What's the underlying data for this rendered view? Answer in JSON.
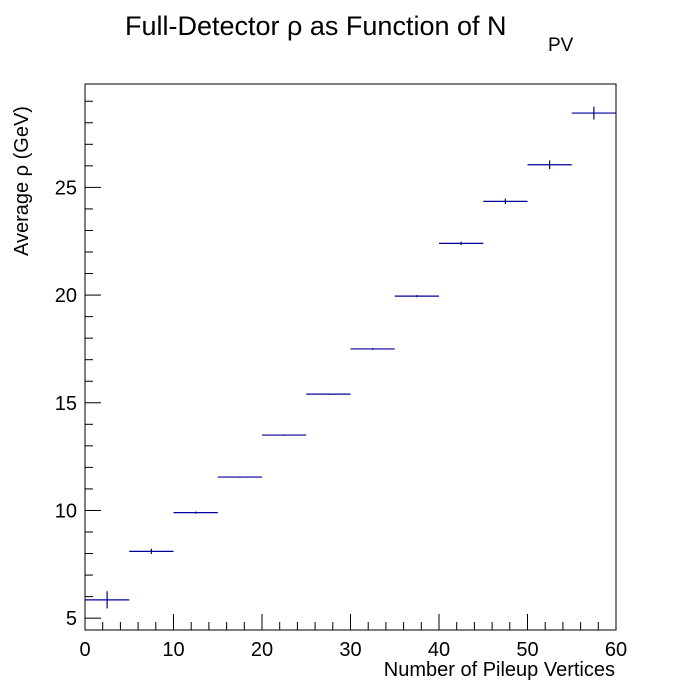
{
  "chart_data": {
    "type": "scatter",
    "title_main": "Full-Detector ρ as Function of N",
    "title_sub": "PV",
    "xlabel": "Number of Pileup Vertices",
    "ylabel": "Average ρ (GeV)",
    "xlim": [
      0,
      60
    ],
    "ylim": [
      4.45,
      29.8
    ],
    "x_ticks": [
      0,
      10,
      20,
      30,
      40,
      50,
      60
    ],
    "y_ticks": [
      5,
      10,
      15,
      20,
      25
    ],
    "grid": false,
    "bin_width": 5,
    "points": [
      {
        "x": 2.5,
        "y": 5.85,
        "yerr": 0.4
      },
      {
        "x": 7.5,
        "y": 8.1,
        "yerr": 0.12
      },
      {
        "x": 12.5,
        "y": 9.9,
        "yerr": 0.05
      },
      {
        "x": 17.5,
        "y": 11.55,
        "yerr": 0.03
      },
      {
        "x": 22.5,
        "y": 13.5,
        "yerr": 0.03
      },
      {
        "x": 27.5,
        "y": 15.4,
        "yerr": 0.03
      },
      {
        "x": 32.5,
        "y": 17.5,
        "yerr": 0.04
      },
      {
        "x": 37.5,
        "y": 19.95,
        "yerr": 0.05
      },
      {
        "x": 42.5,
        "y": 22.4,
        "yerr": 0.08
      },
      {
        "x": 47.5,
        "y": 24.35,
        "yerr": 0.13
      },
      {
        "x": 52.5,
        "y": 26.05,
        "yerr": 0.2
      },
      {
        "x": 57.5,
        "y": 28.45,
        "yerr": 0.3
      }
    ],
    "color": "#000099"
  }
}
